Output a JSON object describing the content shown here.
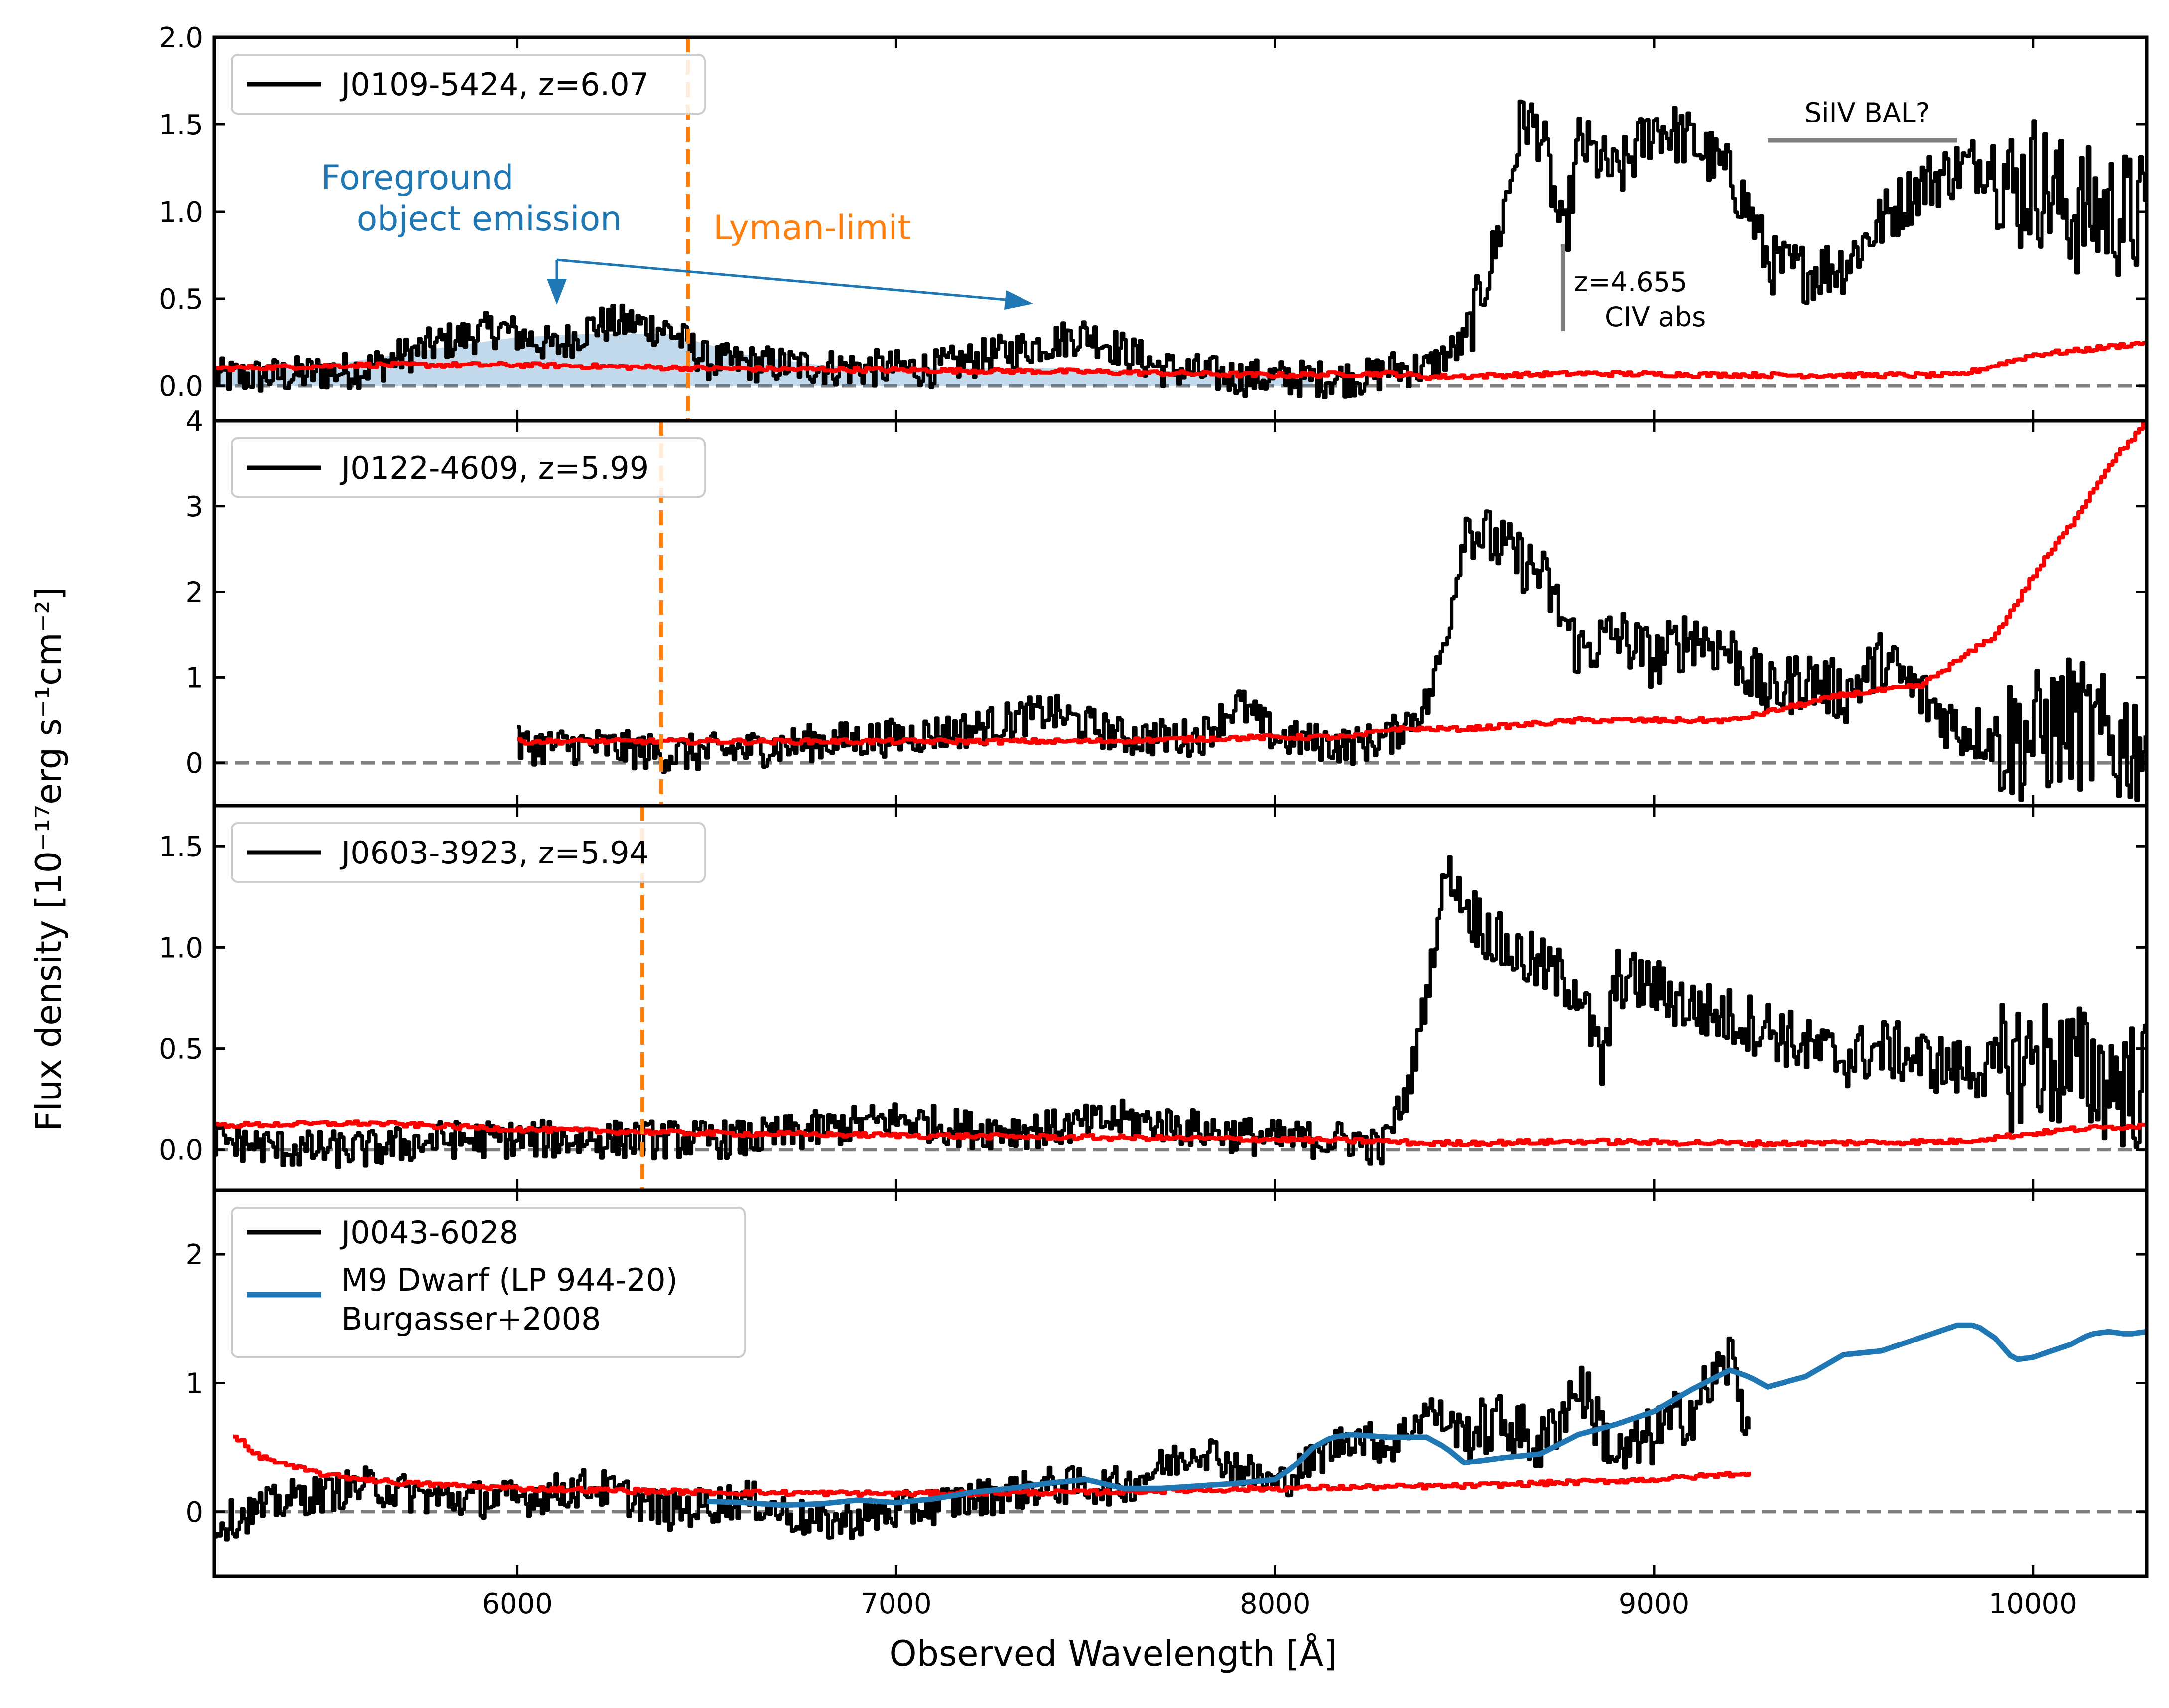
{
  "chart_data": {
    "type": "line",
    "xlabel": "Observed Wavelength [Å]",
    "ylabel": "Flux density [10⁻¹⁷erg s⁻¹cm⁻²]",
    "xlim": [
      5200,
      10300
    ],
    "xticks": [
      6000,
      7000,
      8000,
      9000,
      10000
    ],
    "colors": {
      "spectrum": "#000000",
      "error": "#ff0000",
      "lyman_limit": "#ff7f0e",
      "foreground": "#1f77b4",
      "dwarf": "#1f77b4",
      "annotation": "#808080",
      "zero_line": "#808080"
    },
    "panels": [
      {
        "ylim": [
          -0.2,
          2.0
        ],
        "yticks": [
          0.0,
          0.5,
          1.0,
          1.5,
          2.0
        ],
        "ytick_labels": [
          "0.0",
          "0.5",
          "1.0",
          "1.5",
          "2.0"
        ],
        "legend": [
          "J0109-5424, z=6.07"
        ],
        "lyman_limit": 6450,
        "lyman_label": "Lyman-limit",
        "foreground_label_1": "Foreground",
        "foreground_label_2": "object emission",
        "civ_label_1": "z=4.655",
        "civ_label_2": "CIV abs",
        "civ_wavelength": 8760,
        "bal_label": "SiIV BAL?",
        "bal_range": [
          9300,
          9800
        ],
        "series": [
          {
            "name": "J0109-5424, z=6.07",
            "x": [
              5200,
              5400,
              5600,
              5800,
              5950,
              6100,
              6200,
              6300,
              6400,
              6500,
              6700,
              6900,
              7100,
              7300,
              7500,
              7700,
              7900,
              8100,
              8250,
              8300,
              8400,
              8500,
              8580,
              8620,
              8650,
              8700,
              8760,
              8800,
              8900,
              9000,
              9050,
              9100,
              9200,
              9250,
              9300,
              9400,
              9500,
              9600,
              9700,
              9800,
              9900,
              9950,
              10000,
              10100,
              10200,
              10300
            ],
            "y": [
              0.05,
              0.06,
              0.1,
              0.25,
              0.33,
              0.22,
              0.35,
              0.36,
              0.32,
              0.14,
              0.12,
              0.1,
              0.1,
              0.2,
              0.3,
              0.1,
              0.05,
              0.04,
              0.05,
              0.1,
              0.1,
              0.25,
              0.8,
              1.2,
              1.55,
              1.45,
              0.8,
              1.4,
              1.2,
              1.5,
              1.45,
              1.4,
              1.2,
              1.0,
              0.7,
              0.65,
              0.7,
              0.95,
              1.15,
              1.25,
              1.3,
              1.1,
              1.2,
              1.0,
              1.0,
              0.95
            ]
          },
          {
            "name": "error",
            "x": [
              5200,
              5600,
              6000,
              6500,
              7000,
              7500,
              8000,
              8300,
              8400,
              8800,
              9300,
              9800,
              9900,
              10000,
              10100,
              10300
            ],
            "y": [
              0.1,
              0.12,
              0.12,
              0.1,
              0.09,
              0.08,
              0.06,
              0.07,
              0.05,
              0.07,
              0.06,
              0.06,
              0.12,
              0.18,
              0.2,
              0.25
            ]
          }
        ]
      },
      {
        "ylim": [
          -0.5,
          4.0
        ],
        "yticks": [
          0,
          1,
          2,
          3,
          4
        ],
        "ytick_labels": [
          "0",
          "1",
          "2",
          "3",
          "4"
        ],
        "legend": [
          "J0122-4609, z=5.99"
        ],
        "lyman_limit": 6380,
        "series": [
          {
            "name": "J0122-4609, z=5.99",
            "x": [
              6000,
              6200,
              6400,
              6600,
              6800,
              7000,
              7200,
              7400,
              7600,
              7800,
              7900,
              8000,
              8200,
              8300,
              8400,
              8450,
              8500,
              8600,
              8700,
              8800,
              8900,
              9000,
              9100,
              9200,
              9300,
              9400,
              9500,
              9600,
              9700,
              9800,
              9900,
              10000,
              10100,
              10200,
              10300
            ],
            "y": [
              0.2,
              0.2,
              0.1,
              0.15,
              0.25,
              0.3,
              0.4,
              0.6,
              0.3,
              0.3,
              0.7,
              0.3,
              0.2,
              0.3,
              0.7,
              1.5,
              2.8,
              2.5,
              2.2,
              1.3,
              1.5,
              1.2,
              1.5,
              1.3,
              0.8,
              1.0,
              0.8,
              1.2,
              0.8,
              0.4,
              0.3,
              0.3,
              0.5,
              0.2,
              0.3
            ]
          },
          {
            "name": "error",
            "x": [
              6000,
              6500,
              7000,
              7500,
              8000,
              8200,
              8300,
              8500,
              8800,
              9200,
              9500,
              9700,
              9800,
              9900,
              10000,
              10100,
              10200,
              10300
            ],
            "y": [
              0.25,
              0.25,
              0.25,
              0.25,
              0.3,
              0.3,
              0.4,
              0.4,
              0.5,
              0.5,
              0.8,
              0.9,
              1.2,
              1.5,
              2.2,
              2.8,
              3.5,
              4.0
            ]
          }
        ]
      },
      {
        "ylim": [
          -0.2,
          1.7
        ],
        "yticks": [
          0.0,
          0.5,
          1.0,
          1.5
        ],
        "ytick_labels": [
          "0.0",
          "0.5",
          "1.0",
          "1.5"
        ],
        "legend": [
          "J0603-3923, z=5.94"
        ],
        "lyman_limit": 6330,
        "series": [
          {
            "name": "J0603-3923, z=5.94",
            "x": [
              5200,
              5400,
              5600,
              5800,
              6000,
              6200,
              6400,
              6600,
              6800,
              7000,
              7200,
              7400,
              7600,
              7800,
              8000,
              8200,
              8280,
              8300,
              8350,
              8400,
              8450,
              8500,
              8600,
              8700,
              8800,
              8860,
              8900,
              9000,
              9100,
              9200,
              9300,
              9400,
              9500,
              9600,
              9700,
              9800,
              9900,
              10000,
              10100,
              10200,
              10300
            ],
            "y": [
              0.05,
              0.0,
              0.0,
              0.05,
              0.05,
              0.05,
              0.05,
              0.05,
              0.1,
              0.15,
              0.1,
              0.1,
              0.15,
              0.1,
              0.05,
              0.05,
              0.0,
              0.1,
              0.3,
              0.8,
              1.4,
              1.2,
              1.0,
              0.9,
              0.8,
              0.4,
              0.85,
              0.8,
              0.7,
              0.65,
              0.6,
              0.5,
              0.45,
              0.5,
              0.45,
              0.4,
              0.4,
              0.45,
              0.4,
              0.35,
              0.3
            ]
          },
          {
            "name": "error",
            "x": [
              5200,
              5600,
              6000,
              6500,
              7000,
              7500,
              8000,
              8300,
              8400,
              8800,
              9300,
              9800,
              9900,
              10000,
              10100,
              10300
            ],
            "y": [
              0.12,
              0.13,
              0.1,
              0.08,
              0.07,
              0.06,
              0.05,
              0.04,
              0.03,
              0.04,
              0.03,
              0.04,
              0.06,
              0.08,
              0.1,
              0.12
            ]
          }
        ]
      },
      {
        "ylim": [
          -0.5,
          2.5
        ],
        "yticks": [
          0,
          1,
          2
        ],
        "ytick_labels": [
          "0",
          "1",
          "2"
        ],
        "legend": [
          "J0043-6028",
          "M9 Dwarf (LP 944-20)",
          " Burgasser+2008"
        ],
        "series": [
          {
            "name": "J0043-6028",
            "x": [
              5200,
              5400,
              5600,
              5800,
              6000,
              6200,
              6400,
              6600,
              6800,
              7000,
              7200,
              7400,
              7600,
              7800,
              8000,
              8200,
              8300,
              8400,
              8500,
              8600,
              8700,
              8800,
              8900,
              9000,
              9100,
              9200,
              9250
            ],
            "y": [
              -0.1,
              0.1,
              0.2,
              0.1,
              0.1,
              0.2,
              0.0,
              0.1,
              -0.1,
              0.0,
              0.1,
              0.2,
              0.2,
              0.5,
              0.2,
              0.6,
              0.5,
              0.8,
              0.6,
              0.7,
              0.5,
              1.0,
              0.4,
              0.6,
              0.8,
              1.2,
              0.6
            ]
          },
          {
            "name": "error",
            "x": [
              5250,
              5300,
              5400,
              5500,
              5700,
              6000,
              6500,
              7000,
              7500,
              8000,
              8500,
              9000,
              9250
            ],
            "y": [
              0.6,
              0.45,
              0.35,
              0.28,
              0.22,
              0.18,
              0.15,
              0.14,
              0.15,
              0.18,
              0.2,
              0.25,
              0.3
            ]
          },
          {
            "name": "M9 Dwarf (LP 944-20) Burgasser+2008",
            "x": [
              6500,
              6600,
              6700,
              6800,
              6900,
              7000,
              7100,
              7200,
              7300,
              7400,
              7500,
              7600,
              7700,
              7800,
              7900,
              8000,
              8050,
              8100,
              8150,
              8200,
              8300,
              8400,
              8450,
              8500,
              8600,
              8700,
              8800,
              8900,
              9000,
              9100,
              9200,
              9250,
              9300,
              9400,
              9500,
              9600,
              9700,
              9800,
              9850,
              9900,
              9950,
              10000,
              10100,
              10150,
              10200,
              10250,
              10300
            ],
            "y": [
              0.08,
              0.07,
              0.05,
              0.06,
              0.09,
              0.07,
              0.1,
              0.15,
              0.18,
              0.22,
              0.25,
              0.18,
              0.18,
              0.2,
              0.22,
              0.25,
              0.35,
              0.5,
              0.58,
              0.6,
              0.58,
              0.58,
              0.5,
              0.38,
              0.42,
              0.45,
              0.6,
              0.68,
              0.78,
              0.95,
              1.1,
              1.05,
              0.97,
              1.05,
              1.22,
              1.25,
              1.35,
              1.45,
              1.45,
              1.35,
              1.18,
              1.2,
              1.3,
              1.38,
              1.4,
              1.38,
              1.4
            ]
          }
        ]
      }
    ]
  }
}
